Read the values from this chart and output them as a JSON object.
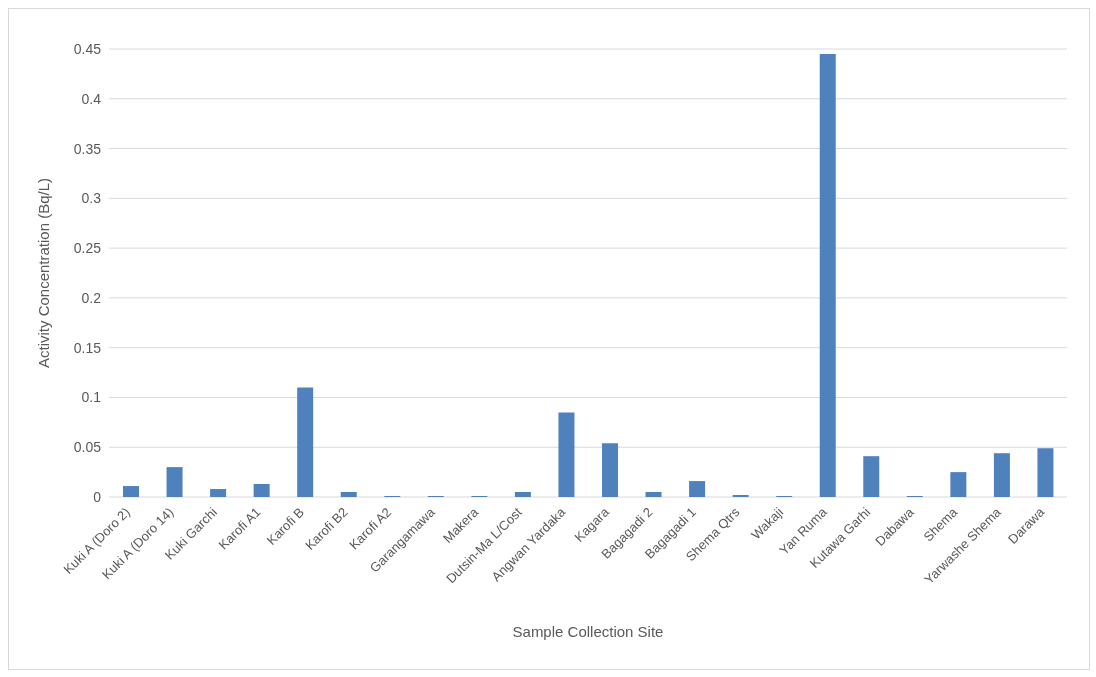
{
  "chart_data": {
    "type": "bar",
    "xlabel": "Sample Collection Site",
    "ylabel": "Activity Concentration (Bq/L)",
    "categories": [
      "Kuki A (Doro 2)",
      "Kuki A (Doro 14)",
      "Kuki Garchi",
      "Karofi A1",
      "Karofi B",
      "Karofi B2",
      "Karofi A2",
      "Garangamawa",
      "Makera",
      "Dutsin-Ma L/Cost",
      "Angwan Yardaka",
      "Kagara",
      "Bagagadi 2",
      "Bagagadi 1",
      "Shema Qtrs",
      "Wakaji",
      "Yan Ruma",
      "Kutawa Garhi",
      "Dabawa",
      "Shema",
      "Yarwashe Shema",
      "Darawa"
    ],
    "values": [
      0.011,
      0.03,
      0.008,
      0.013,
      0.11,
      0.005,
      0.001,
      0.001,
      0.001,
      0.005,
      0.085,
      0.054,
      0.005,
      0.016,
      0.002,
      0.001,
      0.445,
      0.041,
      0.001,
      0.025,
      0.044,
      0.049
    ],
    "color": "#4f81bd",
    "ylim": [
      0,
      0.45
    ],
    "yticks": [
      0,
      0.05,
      0.1,
      0.15,
      0.2,
      0.25,
      0.3,
      0.35,
      0.4,
      0.45
    ],
    "grid": "y"
  }
}
